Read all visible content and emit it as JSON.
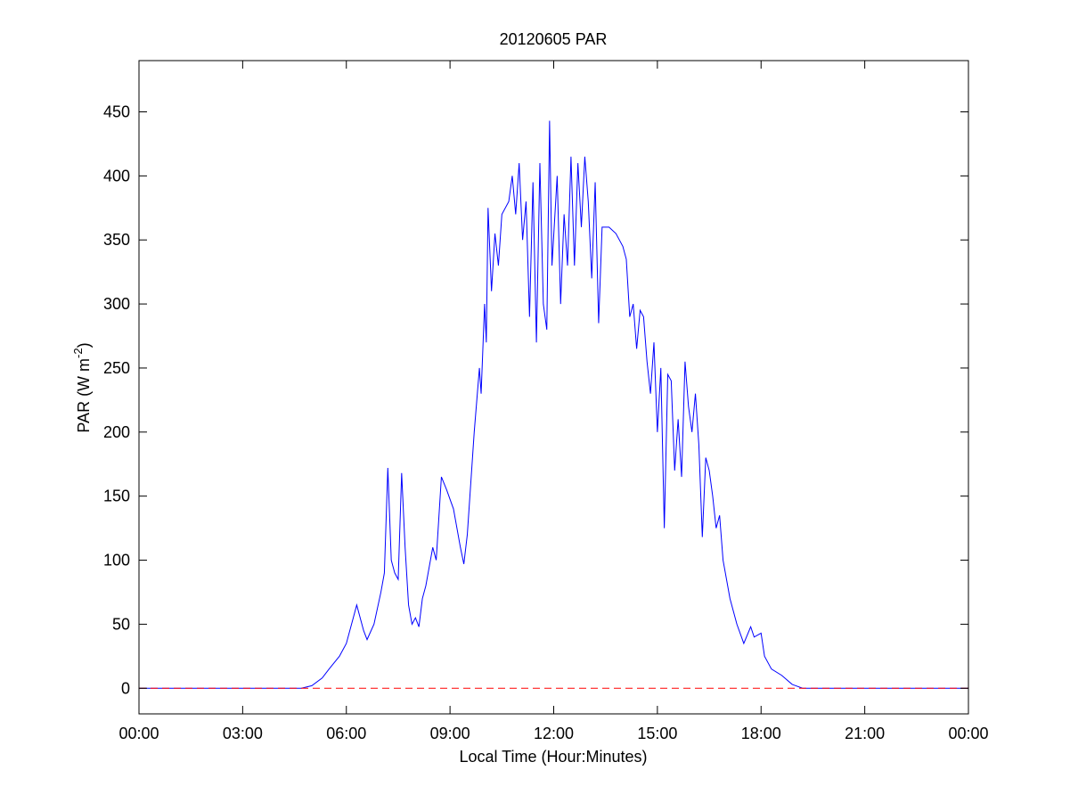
{
  "chart_data": {
    "type": "line",
    "title": "20120605 PAR",
    "xlabel": "Local Time (Hour:Minutes)",
    "ylabel": [
      "PAR (W m",
      "-2",
      ")"
    ],
    "xlim": [
      0,
      24
    ],
    "xticks": [
      {
        "value": 0,
        "label": "00:00"
      },
      {
        "value": 3,
        "label": "03:00"
      },
      {
        "value": 6,
        "label": "06:00"
      },
      {
        "value": 9,
        "label": "09:00"
      },
      {
        "value": 12,
        "label": "12:00"
      },
      {
        "value": 15,
        "label": "15:00"
      },
      {
        "value": 18,
        "label": "18:00"
      },
      {
        "value": 21,
        "label": "21:00"
      },
      {
        "value": 24,
        "label": "00:00"
      }
    ],
    "ylim": [
      -20,
      490
    ],
    "yticks": [
      0,
      50,
      100,
      150,
      200,
      250,
      300,
      350,
      400,
      450
    ],
    "series": [
      {
        "color": "#0000ff",
        "dash": false,
        "x": [
          0,
          4.7,
          5.0,
          5.3,
          5.5,
          5.8,
          6.0,
          6.2,
          6.3,
          6.5,
          6.6,
          6.8,
          7.0,
          7.1,
          7.2,
          7.3,
          7.4,
          7.5,
          7.6,
          7.7,
          7.8,
          7.9,
          8.0,
          8.1,
          8.2,
          8.3,
          8.5,
          8.6,
          8.75,
          8.9,
          9.1,
          9.3,
          9.4,
          9.5,
          9.7,
          9.85,
          9.9,
          10.0,
          10.05,
          10.1,
          10.2,
          10.3,
          10.4,
          10.5,
          10.7,
          10.8,
          10.9,
          11.0,
          11.1,
          11.2,
          11.3,
          11.4,
          11.5,
          11.6,
          11.7,
          11.8,
          11.88,
          11.95,
          12.1,
          12.2,
          12.3,
          12.4,
          12.5,
          12.6,
          12.7,
          12.8,
          12.9,
          13.0,
          13.1,
          13.2,
          13.3,
          13.4,
          13.6,
          13.8,
          14.0,
          14.1,
          14.2,
          14.3,
          14.4,
          14.5,
          14.6,
          14.7,
          14.8,
          14.9,
          15.0,
          15.1,
          15.2,
          15.3,
          15.4,
          15.5,
          15.6,
          15.7,
          15.8,
          15.9,
          16.0,
          16.1,
          16.2,
          16.3,
          16.4,
          16.5,
          16.6,
          16.7,
          16.8,
          16.9,
          17.1,
          17.3,
          17.5,
          17.7,
          17.8,
          18.0,
          18.1,
          18.3,
          18.6,
          18.9,
          19.2,
          24
        ],
        "values": [
          0,
          0,
          2,
          8,
          15,
          25,
          35,
          55,
          65,
          45,
          38,
          50,
          75,
          90,
          172,
          100,
          90,
          85,
          168,
          110,
          65,
          50,
          55,
          48,
          70,
          80,
          110,
          100,
          165,
          155,
          140,
          110,
          97,
          120,
          200,
          250,
          230,
          300,
          270,
          375,
          310,
          355,
          330,
          370,
          380,
          400,
          370,
          410,
          350,
          380,
          290,
          395,
          270,
          410,
          300,
          280,
          443,
          330,
          400,
          300,
          370,
          330,
          415,
          330,
          410,
          360,
          415,
          380,
          320,
          395,
          285,
          360,
          360,
          355,
          345,
          335,
          290,
          300,
          265,
          295,
          290,
          255,
          230,
          270,
          200,
          250,
          125,
          245,
          240,
          170,
          210,
          165,
          255,
          220,
          200,
          230,
          190,
          118,
          180,
          170,
          150,
          125,
          135,
          100,
          70,
          50,
          35,
          48,
          40,
          43,
          25,
          15,
          10,
          3,
          0,
          0
        ]
      },
      {
        "color": "#ff0000",
        "dash": true,
        "x": [
          0,
          24
        ],
        "values": [
          0,
          0
        ]
      }
    ]
  }
}
